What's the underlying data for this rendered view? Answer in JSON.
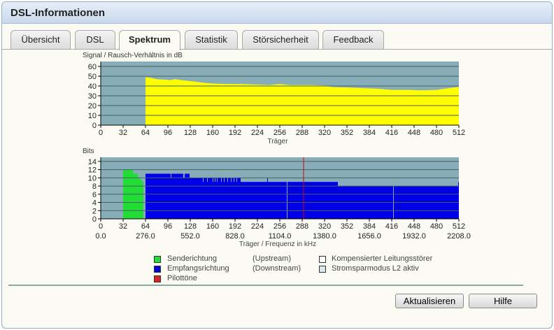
{
  "window": {
    "title": "DSL-Informationen"
  },
  "tabs": [
    {
      "label": "Übersicht"
    },
    {
      "label": "DSL"
    },
    {
      "label": "Spektrum",
      "active": true
    },
    {
      "label": "Statistik"
    },
    {
      "label": "Störsicherheit"
    },
    {
      "label": "Feedback"
    }
  ],
  "chart_data": [
    {
      "type": "area",
      "title": "Signal / Rausch-Verhältnis in dB",
      "xlabel": "Träger",
      "xlim": [
        0,
        512
      ],
      "ylim": [
        0,
        65
      ],
      "xticks": [
        "0",
        "32",
        "64",
        "96",
        "128",
        "160",
        "192",
        "224",
        "256",
        "288",
        "320",
        "352",
        "384",
        "416",
        "448",
        "480",
        "512"
      ],
      "yticks": [
        "0",
        "10",
        "20",
        "30",
        "40",
        "50",
        "60"
      ],
      "color": "#ffff00",
      "background": "#86adb8",
      "grid": true,
      "x": [
        64,
        70,
        80,
        90,
        100,
        106,
        115,
        128,
        140,
        150,
        160,
        180,
        200,
        220,
        240,
        256,
        270,
        300,
        320,
        330,
        352,
        370,
        384,
        400,
        416,
        440,
        460,
        480,
        490,
        500,
        512
      ],
      "y": [
        49,
        48.5,
        47,
        46.5,
        46,
        47,
        46,
        45,
        44,
        43,
        42.5,
        42,
        42,
        41.5,
        41,
        42,
        41,
        41,
        40.5,
        39,
        38.5,
        38,
        37.5,
        37,
        36,
        36,
        35.5,
        36,
        37,
        38,
        39
      ]
    },
    {
      "type": "bar",
      "title": "Bits",
      "xlabel": "Träger / Frequenz in kHz",
      "xlim": [
        0,
        512
      ],
      "ylim": [
        0,
        15
      ],
      "xticks": [
        "0",
        "32",
        "64",
        "96",
        "128",
        "160",
        "192",
        "224",
        "256",
        "288",
        "320",
        "352",
        "384",
        "416",
        "448",
        "480",
        "512"
      ],
      "xticks_freq": [
        "0.0",
        "276.0",
        "552.0",
        "828.0",
        "1104.0",
        "1380.0",
        "1656.0",
        "1932.0",
        "2208.0"
      ],
      "yticks": [
        "0",
        "2",
        "4",
        "6",
        "8",
        "10",
        "12",
        "14"
      ],
      "background": "#86adb8",
      "grid": true,
      "series": [
        {
          "name": "Senderichtung",
          "color": "#22dd33",
          "ranges": [
            [
              32,
              45,
              12
            ],
            [
              46,
              52,
              11
            ],
            [
              53,
              55,
              10
            ],
            [
              56,
              58,
              9.5
            ],
            [
              59,
              60,
              9
            ]
          ]
        },
        {
          "name": "Empfangsrichtung",
          "color": "#0000e6",
          "ranges": [
            [
              64,
              99,
              11
            ],
            [
              100,
              100,
              10
            ],
            [
              101,
              117,
              11
            ],
            [
              118,
              119,
              10
            ],
            [
              120,
              126,
              11
            ],
            [
              127,
              199,
              10
            ],
            [
              146,
              146,
              9
            ],
            [
              152,
              152,
              9
            ],
            [
              160,
              160,
              9
            ],
            [
              163,
              163,
              9
            ],
            [
              166,
              166,
              9
            ],
            [
              172,
              172,
              9
            ],
            [
              176,
              176,
              9
            ],
            [
              181,
              181,
              9
            ],
            [
              186,
              186,
              9
            ],
            [
              190,
              190,
              9
            ],
            [
              194,
              194,
              9
            ],
            [
              200,
              338,
              9
            ],
            [
              238,
              238,
              10
            ],
            [
              266,
              266,
              2
            ],
            [
              339,
              511,
              8
            ],
            [
              339,
              344,
              8
            ],
            [
              348,
              350,
              8
            ],
            [
              418,
              418,
              7
            ],
            [
              420,
              424,
              7
            ],
            [
              428,
              488,
              7
            ],
            [
              511,
              511,
              9
            ]
          ]
        }
      ],
      "pilot_carrier": 290,
      "pilot_color": "#dd0000"
    }
  ],
  "legend": [
    {
      "label": "Senderichtung",
      "note": "(Upstream)",
      "color": "#22dd33"
    },
    {
      "label": "Empfangsrichtung",
      "note": "(Downstream)",
      "color": "#0000e6"
    },
    {
      "label": "Pilottöne",
      "color": "#dd2222"
    },
    {
      "label": "Kompensierter Leitungsstörer",
      "color": "#ffffff"
    },
    {
      "label": "Stromsparmodus L2 aktiv",
      "color": "#d8e8f0"
    }
  ],
  "buttons": {
    "refresh": "Aktualisieren",
    "help": "Hilfe"
  }
}
